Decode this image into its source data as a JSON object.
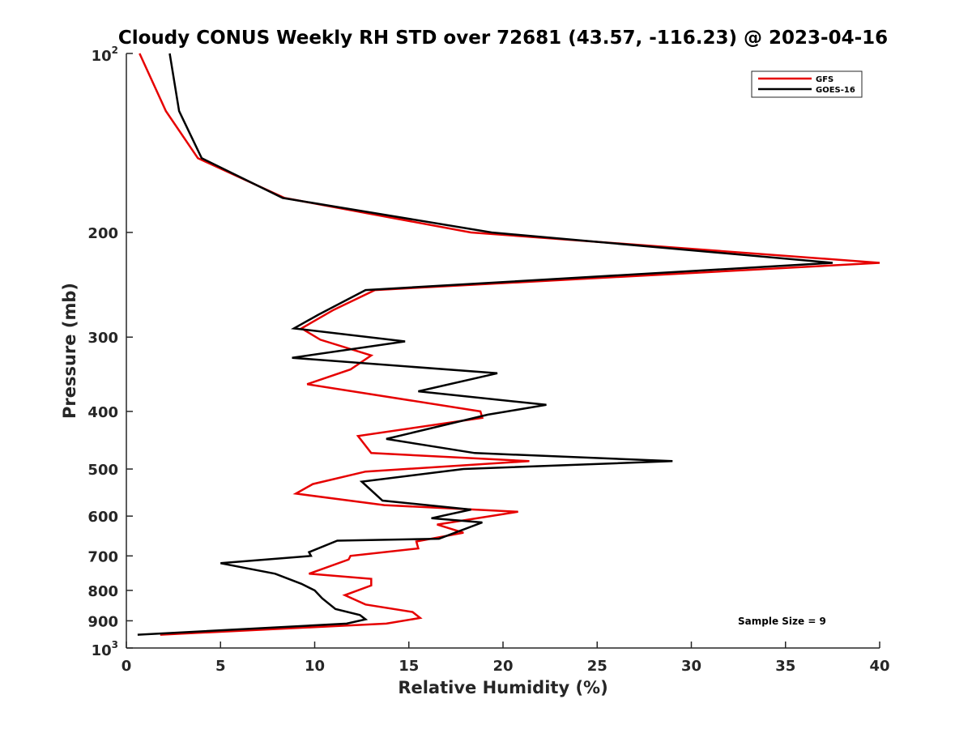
{
  "chart_data": {
    "type": "line",
    "title": "Cloudy CONUS Weekly RH STD over 72681 (43.57, -116.23) @ 2023-04-16",
    "xlabel": "Relative Humidity (%)",
    "ylabel": "Pressure (mb)",
    "xlim": [
      0,
      40
    ],
    "ylim": [
      100,
      1000
    ],
    "y_scale": "log",
    "y_reversed": true,
    "x_ticks": [
      "0",
      "5",
      "10",
      "15",
      "20",
      "25",
      "30",
      "35",
      "40"
    ],
    "y_ticks": [
      {
        "value": 100,
        "base": "10",
        "exp": "2"
      },
      {
        "value": 200,
        "label": "200"
      },
      {
        "value": 300,
        "label": "300"
      },
      {
        "value": 400,
        "label": "400"
      },
      {
        "value": 500,
        "label": "500"
      },
      {
        "value": 600,
        "label": "600"
      },
      {
        "value": 700,
        "label": "700"
      },
      {
        "value": 800,
        "label": "800"
      },
      {
        "value": 900,
        "label": "900"
      },
      {
        "value": 1000,
        "base": "10",
        "exp": "3"
      }
    ],
    "legend_position": "top-right",
    "grid": false,
    "annotation": "Sample Size = 9",
    "series": [
      {
        "name": "GFS",
        "color": "#e60000",
        "points": [
          [
            0.7,
            100
          ],
          [
            2.1,
            125
          ],
          [
            3.8,
            150
          ],
          [
            8.4,
            175
          ],
          [
            18.3,
            200
          ],
          [
            40.0,
            225
          ],
          [
            13.2,
            250
          ],
          [
            11.0,
            270
          ],
          [
            9.3,
            290
          ],
          [
            10.3,
            303
          ],
          [
            13.0,
            322
          ],
          [
            11.9,
            340
          ],
          [
            9.6,
            360
          ],
          [
            18.8,
            400
          ],
          [
            18.9,
            410
          ],
          [
            12.3,
            440
          ],
          [
            13.0,
            470
          ],
          [
            21.4,
            485
          ],
          [
            12.7,
            505
          ],
          [
            9.9,
            530
          ],
          [
            9.0,
            550
          ],
          [
            13.7,
            575
          ],
          [
            20.8,
            590
          ],
          [
            16.5,
            620
          ],
          [
            17.9,
            640
          ],
          [
            15.4,
            662
          ],
          [
            15.5,
            680
          ],
          [
            11.9,
            700
          ],
          [
            11.8,
            710
          ],
          [
            9.7,
            750
          ],
          [
            13.0,
            765
          ],
          [
            13.0,
            785
          ],
          [
            11.6,
            815
          ],
          [
            12.7,
            845
          ],
          [
            15.2,
            870
          ],
          [
            15.6,
            890
          ],
          [
            13.8,
            910
          ],
          [
            1.8,
            950
          ]
        ]
      },
      {
        "name": "GOES-16",
        "color": "#000000",
        "points": [
          [
            2.3,
            100
          ],
          [
            2.8,
            125
          ],
          [
            4.0,
            150
          ],
          [
            8.3,
            175
          ],
          [
            19.4,
            200
          ],
          [
            37.5,
            225
          ],
          [
            12.7,
            250
          ],
          [
            10.2,
            275
          ],
          [
            8.9,
            290
          ],
          [
            14.8,
            305
          ],
          [
            8.8,
            325
          ],
          [
            19.7,
            345
          ],
          [
            15.5,
            370
          ],
          [
            22.3,
            390
          ],
          [
            19.2,
            405
          ],
          [
            13.8,
            445
          ],
          [
            18.5,
            470
          ],
          [
            29.0,
            485
          ],
          [
            17.9,
            500
          ],
          [
            12.5,
            525
          ],
          [
            13.6,
            565
          ],
          [
            18.3,
            585
          ],
          [
            16.2,
            605
          ],
          [
            18.9,
            615
          ],
          [
            16.6,
            655
          ],
          [
            11.2,
            660
          ],
          [
            9.7,
            690
          ],
          [
            9.8,
            700
          ],
          [
            5.0,
            720
          ],
          [
            7.9,
            750
          ],
          [
            9.3,
            780
          ],
          [
            10.0,
            800
          ],
          [
            10.4,
            825
          ],
          [
            11.1,
            860
          ],
          [
            12.4,
            880
          ],
          [
            12.7,
            895
          ],
          [
            11.7,
            910
          ],
          [
            0.6,
            950
          ]
        ]
      }
    ]
  }
}
